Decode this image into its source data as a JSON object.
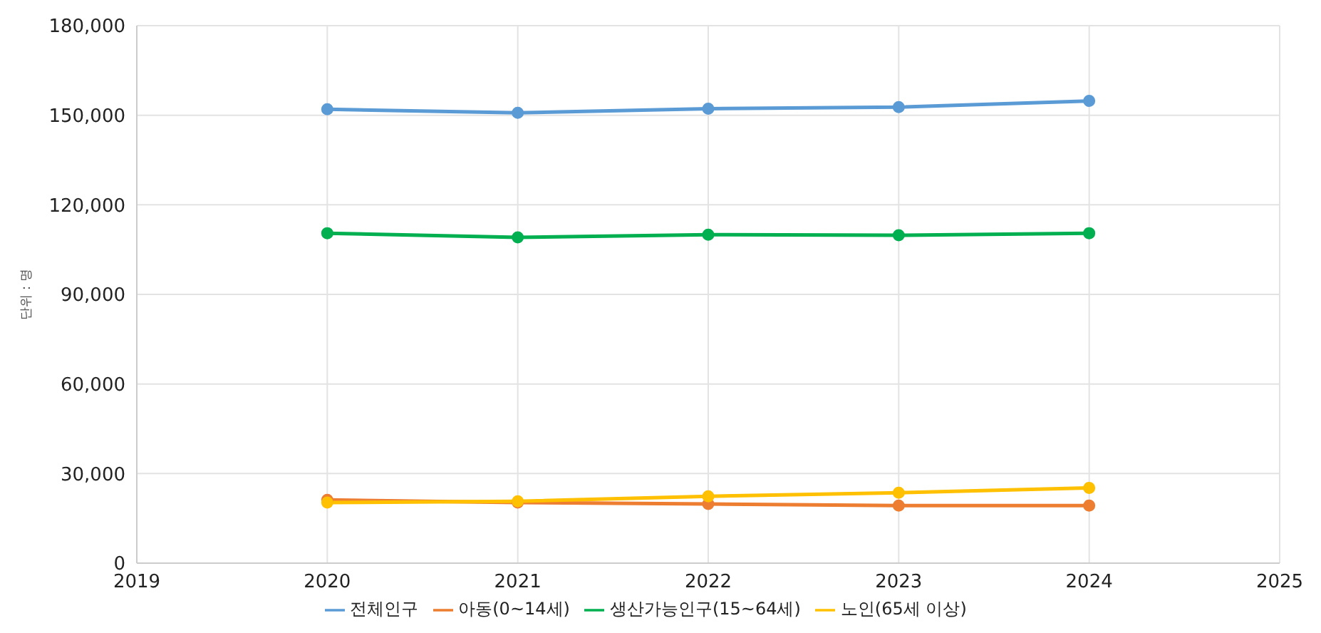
{
  "chart_data": {
    "type": "line",
    "ylabel": "단위 : 명",
    "x": [
      2020,
      2021,
      2022,
      2023,
      2024
    ],
    "xlim": [
      2019,
      2025
    ],
    "xticks": [
      2019,
      2020,
      2021,
      2022,
      2023,
      2024,
      2025
    ],
    "ylim": [
      0,
      180000
    ],
    "yticks": [
      0,
      {
        "value": 30000,
        "label": "30,000"
      },
      {
        "value": 60000,
        "label": "60,000"
      },
      {
        "value": 90000,
        "label": "90,000"
      },
      {
        "value": 120000,
        "label": "120,000"
      },
      {
        "value": 150000,
        "label": "150,000"
      },
      {
        "value": 180000,
        "label": "180,000"
      }
    ],
    "grid": true,
    "legend": "bottom",
    "marker": "circle",
    "line_style": "solid",
    "series": [
      {
        "name": "전체인구",
        "color": "#5b9bd5",
        "values": [
          152000,
          150800,
          152200,
          152700,
          154800
        ]
      },
      {
        "name": "아동(0~14세)",
        "color": "#ed7d31",
        "values": [
          21200,
          20300,
          19800,
          19300,
          19300
        ]
      },
      {
        "name": "생산가능인구(15~64세)",
        "color": "#00b050",
        "values": [
          110500,
          109100,
          110000,
          109800,
          110500
        ]
      },
      {
        "name": "노인(65세 이상)",
        "color": "#ffc000",
        "values": [
          20300,
          20700,
          22400,
          23600,
          25200
        ]
      }
    ]
  }
}
